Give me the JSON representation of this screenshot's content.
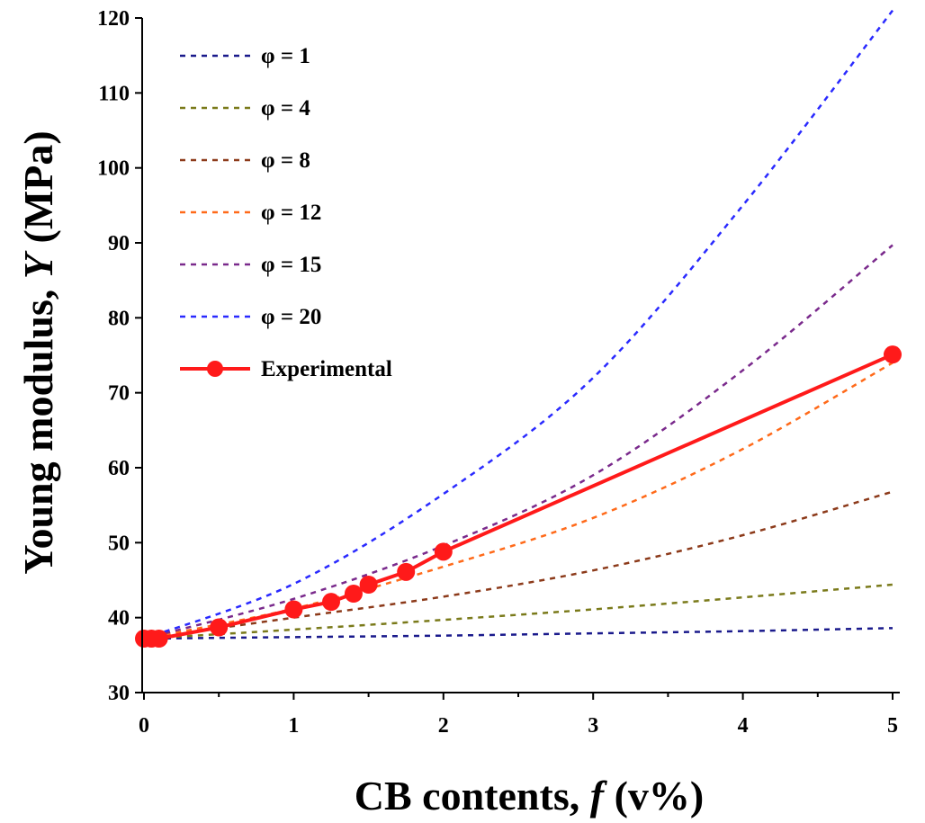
{
  "chart_data": {
    "type": "line",
    "xlabel": {
      "pre": "CB contents, ",
      "var": "f",
      "post": " (v%)"
    },
    "ylabel": {
      "pre": "Young modulus, ",
      "var": "Y",
      "post": " (MPa)"
    },
    "xlim": [
      0,
      5
    ],
    "ylim": [
      30,
      120
    ],
    "xticks": [
      0,
      1,
      2,
      3,
      4,
      5
    ],
    "xtick_labels": [
      "0",
      "1",
      "2",
      "3",
      "4",
      "5"
    ],
    "yticks": [
      30,
      40,
      50,
      60,
      70,
      80,
      90,
      100,
      110,
      120
    ],
    "ytick_labels": [
      "30",
      "40",
      "50",
      "60",
      "70",
      "80",
      "90",
      "100",
      "110",
      "120"
    ],
    "grid": false,
    "legend_position": "top-left",
    "series": [
      {
        "name": "φ = 1",
        "style": "dotted",
        "color": "#1a1a8c",
        "x": [
          0,
          1,
          2,
          3,
          4,
          5
        ],
        "y": [
          37.2,
          37.4,
          37.6,
          37.9,
          38.2,
          38.6
        ]
      },
      {
        "name": "φ = 4",
        "style": "dotted",
        "color": "#7a7a1a",
        "x": [
          0,
          1,
          2,
          3,
          4,
          5
        ],
        "y": [
          37.2,
          38.4,
          39.7,
          41.1,
          42.7,
          44.4
        ]
      },
      {
        "name": "φ = 8",
        "style": "dotted",
        "color": "#8c3a1a",
        "x": [
          0,
          1,
          2,
          3,
          4,
          5
        ],
        "y": [
          37.2,
          40.0,
          42.8,
          46.3,
          51.0,
          56.8
        ]
      },
      {
        "name": "φ = 12",
        "style": "dotted",
        "color": "#ff6a1a",
        "x": [
          0,
          1,
          2,
          3,
          4,
          5
        ],
        "y": [
          37.2,
          41.2,
          46.8,
          53.3,
          62.5,
          74.0
        ]
      },
      {
        "name": "φ = 15",
        "style": "dotted",
        "color": "#7a2a8c",
        "x": [
          0,
          1,
          2,
          3,
          4,
          5
        ],
        "y": [
          37.2,
          42.5,
          49.6,
          59.0,
          73.0,
          89.7
        ]
      },
      {
        "name": "φ = 20",
        "style": "dotted",
        "color": "#2a2aff",
        "x": [
          0,
          1,
          2,
          3,
          4,
          5
        ],
        "y": [
          37.2,
          44.5,
          56.5,
          72.0,
          95.0,
          121.0
        ]
      },
      {
        "name": "Experimental",
        "style": "solid-marker",
        "color": "#ff1a1a",
        "x": [
          0,
          0.05,
          0.1,
          0.5,
          1,
          1.25,
          1.4,
          1.5,
          1.75,
          2,
          5
        ],
        "y": [
          37.2,
          37.2,
          37.2,
          38.7,
          41.1,
          42.1,
          43.2,
          44.4,
          46.1,
          48.8,
          75.1
        ]
      }
    ]
  }
}
